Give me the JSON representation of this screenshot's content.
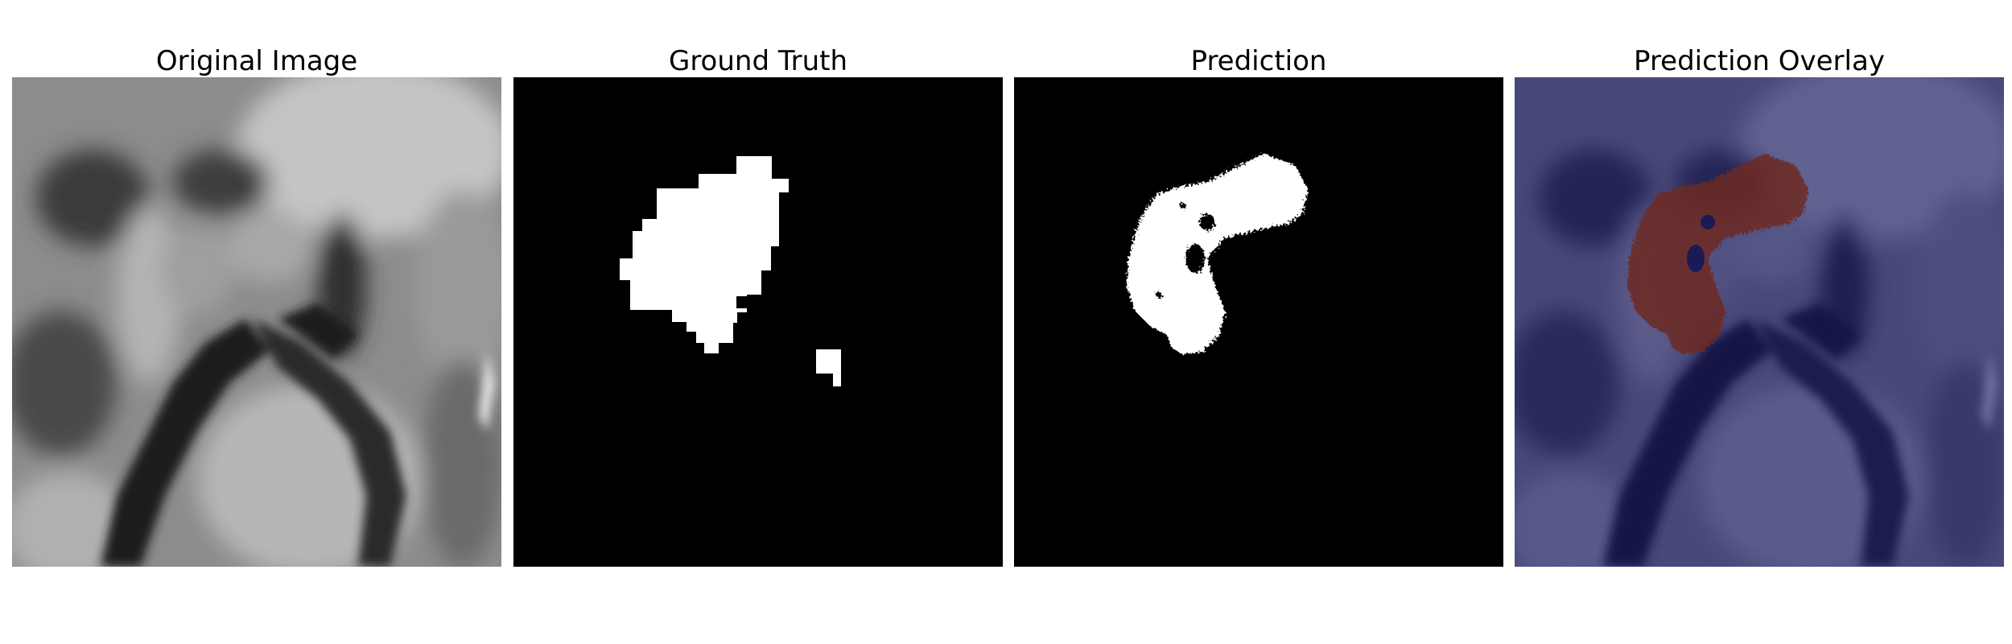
{
  "figure": {
    "panels": [
      {
        "title": "Original Image",
        "kind": "mri-grayscale"
      },
      {
        "title": "Ground Truth",
        "kind": "binary-mask"
      },
      {
        "title": "Prediction",
        "kind": "binary-mask"
      },
      {
        "title": "Prediction Overlay",
        "kind": "mri-with-mask-overlay"
      }
    ]
  },
  "colors": {
    "background": "#ffffff",
    "mask_foreground": "#ffffff",
    "mask_background": "#000000",
    "overlay_tint": "#1a1a66",
    "overlay_mask": "#7a2a1e"
  }
}
